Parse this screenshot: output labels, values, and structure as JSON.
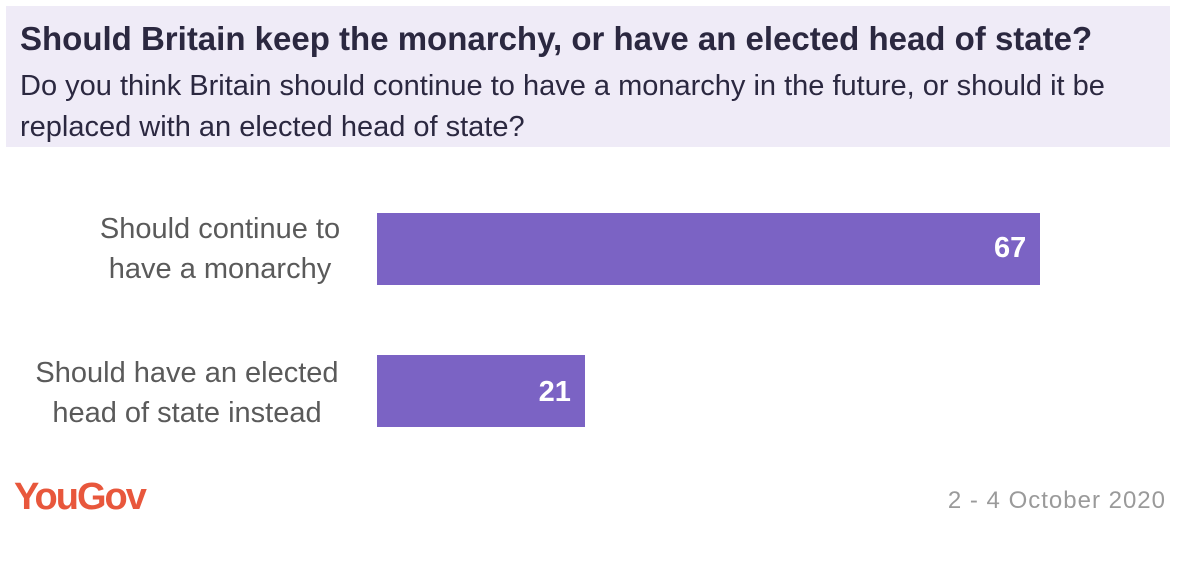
{
  "header": {
    "title": "Should Britain keep the monarchy, or have an elected head of state?",
    "subtitle": "Do you think Britain should continue to have a monarchy in the future, or should it be replaced with an elected head of state?"
  },
  "chart_data": {
    "type": "bar",
    "orientation": "horizontal",
    "title": "Should Britain keep the monarchy, or have an elected head of state?",
    "categories": [
      "Should continue to have a monarchy",
      "Should have an elected head of state instead"
    ],
    "category_lines": [
      [
        "Should continue to",
        "have a monarchy"
      ],
      [
        "Should have an elected",
        "head of state instead"
      ]
    ],
    "values": [
      67,
      21
    ],
    "xlim": [
      0,
      100
    ],
    "xlabel": "",
    "ylabel": "",
    "grid": false,
    "legend": "none"
  },
  "colors": {
    "bar": "#7b63c4",
    "header_bg": "#efebf7",
    "brand": "#e8573c"
  },
  "footer": {
    "brand": "YouGov",
    "date": "2 - 4 October 2020"
  }
}
